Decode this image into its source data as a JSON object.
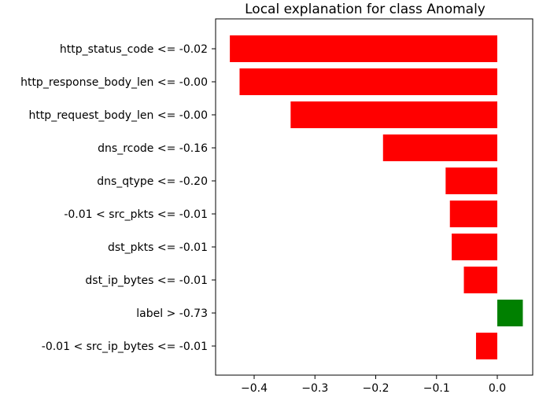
{
  "chart_data": {
    "type": "bar",
    "orientation": "horizontal",
    "title": "Local explanation for class Anomaly",
    "xlabel": "",
    "ylabel": "",
    "xlim": [
      -0.45,
      0.05
    ],
    "x_ticks": [
      "−0.4",
      "−0.3",
      "−0.2",
      "−0.1",
      "0.0"
    ],
    "categories": [
      "http_status_code <= -0.02",
      "http_response_body_len <= -0.00",
      "http_request_body_len <= -0.00",
      "dns_rcode <= -0.16",
      "dns_qtype <= -0.20",
      "-0.01 < src_pkts <= -0.01",
      "dst_pkts <= -0.01",
      "dst_ip_bytes <= -0.01",
      "label > -0.73",
      "-0.01 < src_ip_bytes <= -0.01"
    ],
    "values": [
      -0.44,
      -0.424,
      -0.34,
      -0.188,
      -0.085,
      -0.078,
      -0.075,
      -0.055,
      0.042,
      -0.035
    ],
    "colors": {
      "negative": "#ff0000",
      "positive": "#008000"
    },
    "grid": false
  }
}
